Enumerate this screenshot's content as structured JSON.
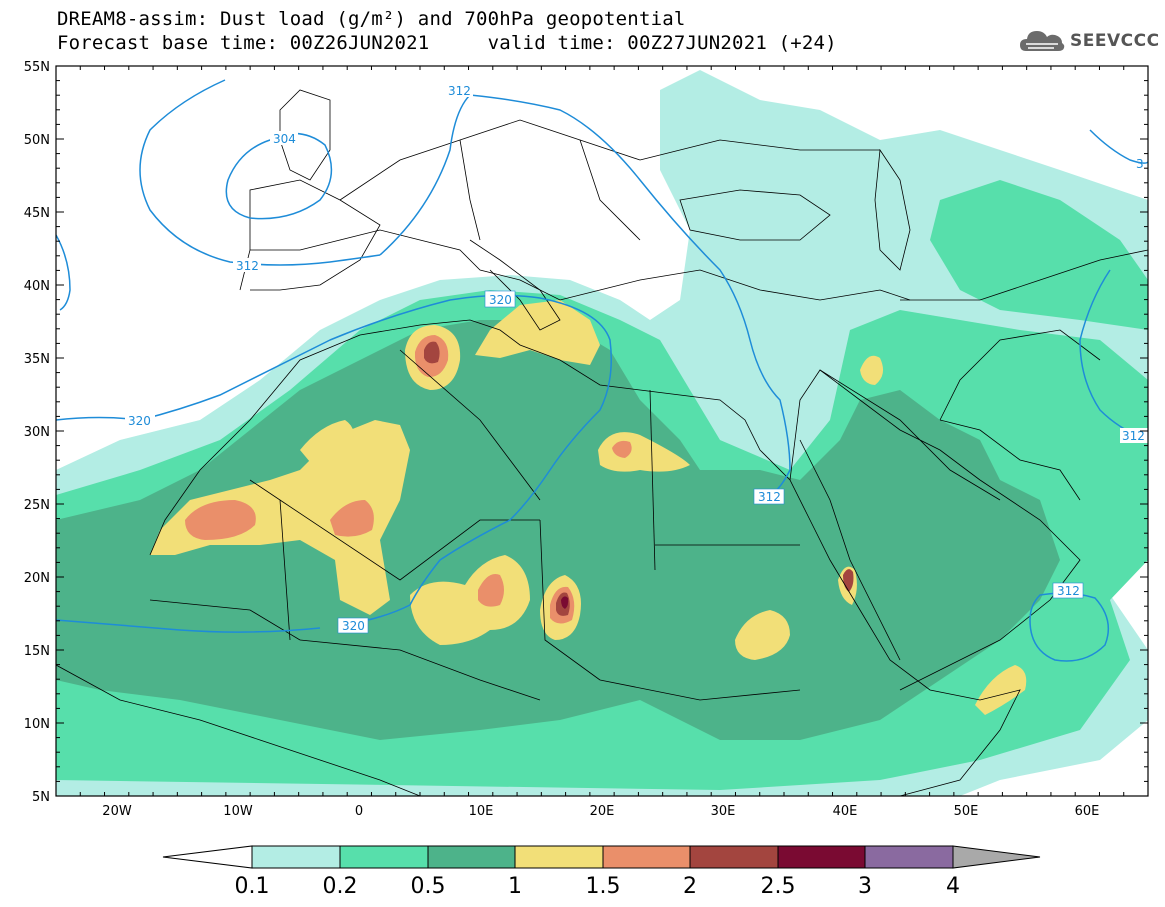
{
  "title_line1": "DREAM8-assim: Dust load (g/m²) and 700hPa geopotential",
  "title_line2": "Forecast base time: 00Z26JUN2021     valid time: 00Z27JUN2021 (+24)",
  "logo_text": "SEEVCCC",
  "logo_icon": "cloud-icon",
  "map": {
    "lon_range": [
      -25,
      65
    ],
    "lat_range": [
      5,
      55
    ],
    "lat_labels": [
      "55N",
      "50N",
      "45N",
      "40N",
      "35N",
      "30N",
      "25N",
      "20N",
      "15N",
      "10N",
      "5N"
    ],
    "lon_labels": [
      "20W",
      "10W",
      "0",
      "10E",
      "20E",
      "30E",
      "40E",
      "50E",
      "60E"
    ],
    "contour_labels": [
      "312",
      "304",
      "312",
      "320",
      "320",
      "320",
      "312",
      "312",
      "312",
      "3"
    ]
  },
  "colorbar": {
    "levels": [
      "0.1",
      "0.2",
      "0.5",
      "1",
      "1.5",
      "2",
      "2.5",
      "3",
      "4"
    ],
    "colors": [
      "#b3ede4",
      "#57dfab",
      "#4db38a",
      "#f2df78",
      "#ea8f6a",
      "#a3453f",
      "#7a0a32",
      "#8a6aa0",
      "#a9a9a9"
    ],
    "under_color": "#ffffff"
  },
  "colors": {
    "contour": "#1e8cd8",
    "border": "#000000"
  }
}
